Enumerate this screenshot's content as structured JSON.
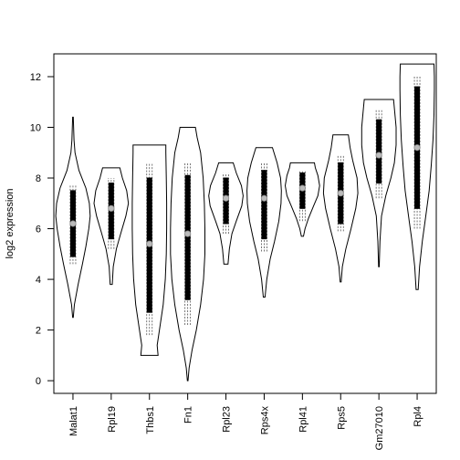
{
  "chart_data": {
    "type": "violin",
    "title": "",
    "xlabel": "",
    "ylabel": "log2 expression",
    "ylim": [
      -0.5,
      12.9
    ],
    "yticks": [
      0,
      2,
      4,
      6,
      8,
      10,
      12
    ],
    "categories": [
      "Malat1",
      "Rpl19",
      "Thbs1",
      "Fn1",
      "Rpl23",
      "Rps4x",
      "Rpl41",
      "Rps5",
      "Gm27010",
      "Rpl4"
    ],
    "series": [
      {
        "name": "Malat1",
        "min": 2.5,
        "max": 10.4,
        "whisker_low": 4.6,
        "whisker_high": 7.7,
        "q1": 4.9,
        "q3": 7.5,
        "median": 6.2,
        "density": [
          [
            2.5,
            0.02
          ],
          [
            3.0,
            0.08
          ],
          [
            3.8,
            0.3
          ],
          [
            4.6,
            0.55
          ],
          [
            5.3,
            0.75
          ],
          [
            6.0,
            0.92
          ],
          [
            6.5,
            1.0
          ],
          [
            7.0,
            0.95
          ],
          [
            7.6,
            0.75
          ],
          [
            8.3,
            0.35
          ],
          [
            9.0,
            0.12
          ],
          [
            9.5,
            0.06
          ],
          [
            10.4,
            0.02
          ]
        ]
      },
      {
        "name": "Rpl19",
        "min": 3.8,
        "max": 8.4,
        "whisker_low": 5.2,
        "whisker_high": 8.0,
        "q1": 5.6,
        "q3": 7.8,
        "median": 6.8,
        "density": [
          [
            3.8,
            0.06
          ],
          [
            4.5,
            0.12
          ],
          [
            5.2,
            0.3
          ],
          [
            5.8,
            0.55
          ],
          [
            6.5,
            0.85
          ],
          [
            7.0,
            1.0
          ],
          [
            7.5,
            0.9
          ],
          [
            8.0,
            0.65
          ],
          [
            8.4,
            0.5
          ]
        ]
      },
      {
        "name": "Thbs1",
        "min": 1.0,
        "max": 9.3,
        "whisker_low": 1.8,
        "whisker_high": 8.6,
        "q1": 2.7,
        "q3": 8.0,
        "median": 5.4,
        "density": [
          [
            1.0,
            0.5
          ],
          [
            1.4,
            0.45
          ],
          [
            2.0,
            0.58
          ],
          [
            3.0,
            0.8
          ],
          [
            4.0,
            0.92
          ],
          [
            5.0,
            0.98
          ],
          [
            6.0,
            1.0
          ],
          [
            7.0,
            1.0
          ],
          [
            8.0,
            0.98
          ],
          [
            9.0,
            0.95
          ],
          [
            9.3,
            0.95
          ]
        ]
      },
      {
        "name": "Fn1",
        "min": 0.0,
        "max": 10.0,
        "whisker_low": 2.2,
        "whisker_high": 8.6,
        "q1": 3.2,
        "q3": 8.1,
        "median": 5.8,
        "density": [
          [
            0.0,
            0.02
          ],
          [
            0.5,
            0.08
          ],
          [
            1.2,
            0.25
          ],
          [
            2.0,
            0.5
          ],
          [
            3.0,
            0.75
          ],
          [
            4.0,
            0.92
          ],
          [
            5.0,
            1.0
          ],
          [
            6.0,
            1.0
          ],
          [
            7.0,
            0.97
          ],
          [
            8.0,
            0.9
          ],
          [
            9.0,
            0.75
          ],
          [
            9.6,
            0.55
          ],
          [
            10.0,
            0.45
          ]
        ]
      },
      {
        "name": "Rpl23",
        "min": 4.6,
        "max": 8.6,
        "whisker_low": 5.8,
        "whisker_high": 8.2,
        "q1": 6.2,
        "q3": 8.0,
        "median": 7.2,
        "density": [
          [
            4.6,
            0.12
          ],
          [
            5.2,
            0.2
          ],
          [
            5.8,
            0.35
          ],
          [
            6.3,
            0.6
          ],
          [
            6.9,
            0.92
          ],
          [
            7.3,
            1.0
          ],
          [
            7.7,
            0.9
          ],
          [
            8.2,
            0.6
          ],
          [
            8.6,
            0.42
          ]
        ]
      },
      {
        "name": "Rps4x",
        "min": 3.3,
        "max": 9.2,
        "whisker_low": 5.1,
        "whisker_high": 8.6,
        "q1": 5.6,
        "q3": 8.3,
        "median": 7.2,
        "density": [
          [
            3.3,
            0.05
          ],
          [
            4.0,
            0.15
          ],
          [
            4.8,
            0.35
          ],
          [
            5.5,
            0.6
          ],
          [
            6.3,
            0.85
          ],
          [
            7.0,
            0.98
          ],
          [
            7.5,
            1.0
          ],
          [
            8.0,
            0.95
          ],
          [
            8.6,
            0.75
          ],
          [
            9.2,
            0.48
          ]
        ]
      },
      {
        "name": "Rpl41",
        "min": 5.7,
        "max": 8.6,
        "whisker_low": 6.3,
        "whisker_high": 8.3,
        "q1": 6.8,
        "q3": 8.2,
        "median": 7.6,
        "density": [
          [
            5.7,
            0.06
          ],
          [
            6.0,
            0.15
          ],
          [
            6.4,
            0.35
          ],
          [
            6.9,
            0.65
          ],
          [
            7.3,
            0.9
          ],
          [
            7.7,
            1.0
          ],
          [
            8.1,
            0.9
          ],
          [
            8.4,
            0.75
          ],
          [
            8.6,
            0.7
          ]
        ]
      },
      {
        "name": "Rps5",
        "min": 3.9,
        "max": 9.7,
        "whisker_low": 5.9,
        "whisker_high": 8.9,
        "q1": 6.2,
        "q3": 8.6,
        "median": 7.4,
        "density": [
          [
            3.9,
            0.03
          ],
          [
            4.5,
            0.1
          ],
          [
            5.2,
            0.3
          ],
          [
            6.0,
            0.6
          ],
          [
            6.8,
            0.88
          ],
          [
            7.4,
            1.0
          ],
          [
            8.0,
            0.95
          ],
          [
            8.7,
            0.7
          ],
          [
            9.2,
            0.55
          ],
          [
            9.7,
            0.45
          ]
        ]
      },
      {
        "name": "Gm27010",
        "min": 4.5,
        "max": 11.1,
        "whisker_low": 7.2,
        "whisker_high": 10.7,
        "q1": 7.8,
        "q3": 10.3,
        "median": 8.9,
        "density": [
          [
            4.5,
            0.02
          ],
          [
            5.5,
            0.06
          ],
          [
            6.5,
            0.15
          ],
          [
            7.3,
            0.4
          ],
          [
            8.0,
            0.7
          ],
          [
            8.6,
            0.9
          ],
          [
            9.3,
            1.0
          ],
          [
            10.0,
            1.0
          ],
          [
            10.6,
            0.92
          ],
          [
            11.1,
            0.85
          ]
        ]
      },
      {
        "name": "Rpl4",
        "min": 3.6,
        "max": 12.5,
        "whisker_low": 6.0,
        "whisker_high": 12.0,
        "q1": 6.8,
        "q3": 11.6,
        "median": 9.2,
        "density": [
          [
            3.6,
            0.06
          ],
          [
            4.5,
            0.14
          ],
          [
            5.5,
            0.3
          ],
          [
            6.5,
            0.5
          ],
          [
            7.5,
            0.7
          ],
          [
            8.5,
            0.82
          ],
          [
            9.5,
            0.92
          ],
          [
            10.5,
            0.98
          ],
          [
            11.5,
            1.0
          ],
          [
            12.0,
            1.0
          ],
          [
            12.5,
            0.98
          ]
        ]
      }
    ]
  }
}
